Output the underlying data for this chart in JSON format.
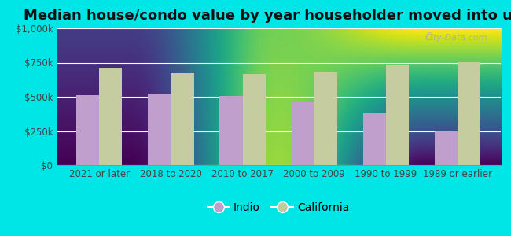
{
  "title": "Median house/condo value by year householder moved into unit",
  "categories": [
    "2021 or later",
    "2018 to 2020",
    "2010 to 2017",
    "2000 to 2009",
    "1990 to 1999",
    "1989 or earlier"
  ],
  "indio_values": [
    510000,
    525000,
    505000,
    460000,
    380000,
    245000
  ],
  "california_values": [
    715000,
    675000,
    665000,
    680000,
    735000,
    755000
  ],
  "indio_color": "#c09fcc",
  "california_color": "#c5cc9f",
  "background_color": "#00e5e5",
  "plot_bg_top": "#daeef5",
  "plot_bg_bottom": "#d4f0d4",
  "ylim": [
    0,
    1000000
  ],
  "yticks": [
    0,
    250000,
    500000,
    750000,
    1000000
  ],
  "ytick_labels": [
    "$0",
    "$250k",
    "$500k",
    "$750k",
    "$1,000k"
  ],
  "legend_labels": [
    "Indio",
    "California"
  ],
  "watermark": "City-Data.com",
  "title_fontsize": 13,
  "tick_fontsize": 8.5,
  "legend_fontsize": 10,
  "bar_width": 0.32
}
